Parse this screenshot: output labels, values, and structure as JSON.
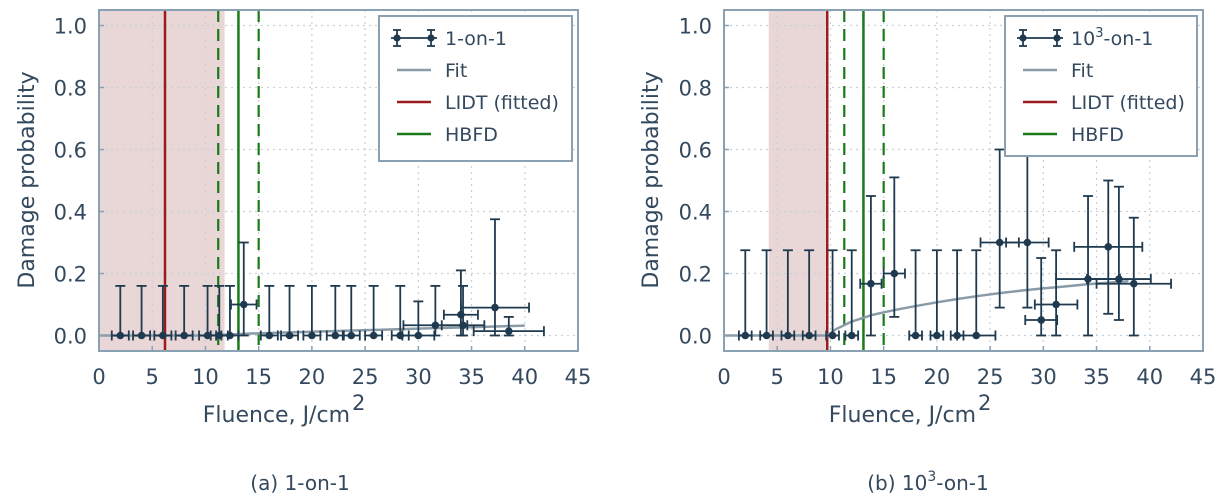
{
  "colors": {
    "axes": "#8aa0b3",
    "grid": "#c8d0d8",
    "data": "#1f3a4f",
    "fit": "#8a9ba8",
    "lidt": "#9b1c1c",
    "hbfd": "#1a7a1a",
    "shade": "#e9d6d6",
    "text": "#34495e"
  },
  "chart_data": [
    {
      "type": "scatter",
      "caption": "(a) 1-on-1",
      "xlabel_main": "Fluence, J/cm",
      "xlabel_sup": "2",
      "ylabel": "Damage probability",
      "xlim": [
        0,
        45
      ],
      "ylim": [
        -0.05,
        1.05
      ],
      "xticks": [
        "0",
        "5",
        "10",
        "15",
        "20",
        "25",
        "30",
        "35",
        "40",
        "45"
      ],
      "yticks": [
        "0.0",
        "0.2",
        "0.4",
        "0.6",
        "0.8",
        "1.0"
      ],
      "grid": true,
      "legend_position": "top-right",
      "legend": {
        "data_label": "1-on-1",
        "data_label_sup": "",
        "data_label_rest": "",
        "fit_label": "Fit",
        "lidt_label": "LIDT (fitted)",
        "hbfd_label": "HBFD"
      },
      "shaded_region": [
        0,
        11.8
      ],
      "lidt": 6.2,
      "hbfd": 13.1,
      "hbfd_band": [
        11.2,
        15.0
      ],
      "fit": {
        "x": [
          0,
          10,
          12,
          14,
          16,
          18,
          20,
          22,
          24,
          26,
          28,
          30,
          32,
          34,
          36,
          38,
          40
        ],
        "y": [
          0,
          0,
          0.003,
          0.006,
          0.008,
          0.01,
          0.012,
          0.014,
          0.016,
          0.018,
          0.02,
          0.022,
          0.024,
          0.026,
          0.028,
          0.03,
          0.032
        ]
      },
      "points": [
        {
          "x": 2.0,
          "y": 0.0,
          "xerr": 0.8,
          "ylo": 0.0,
          "yhi": 0.16
        },
        {
          "x": 4.0,
          "y": 0.0,
          "xerr": 0.8,
          "ylo": 0.0,
          "yhi": 0.16
        },
        {
          "x": 6.0,
          "y": 0.0,
          "xerr": 0.8,
          "ylo": 0.0,
          "yhi": 0.16
        },
        {
          "x": 8.0,
          "y": 0.0,
          "xerr": 0.8,
          "ylo": 0.0,
          "yhi": 0.16
        },
        {
          "x": 10.2,
          "y": 0.0,
          "xerr": 0.8,
          "ylo": 0.0,
          "yhi": 0.16
        },
        {
          "x": 11.3,
          "y": 0.0,
          "xerr": 0.8,
          "ylo": 0.0,
          "yhi": 0.16
        },
        {
          "x": 12.3,
          "y": 0.0,
          "xerr": 0.8,
          "ylo": 0.0,
          "yhi": 0.16
        },
        {
          "x": 13.6,
          "y": 0.1,
          "xerr": 1.2,
          "ylo": 0.0,
          "yhi": 0.3
        },
        {
          "x": 16.0,
          "y": 0.0,
          "xerr": 0.8,
          "ylo": 0.0,
          "yhi": 0.16
        },
        {
          "x": 17.9,
          "y": 0.0,
          "xerr": 0.8,
          "ylo": 0.0,
          "yhi": 0.16
        },
        {
          "x": 20.0,
          "y": 0.0,
          "xerr": 0.8,
          "ylo": 0.0,
          "yhi": 0.16
        },
        {
          "x": 22.2,
          "y": 0.0,
          "xerr": 0.8,
          "ylo": 0.0,
          "yhi": 0.16
        },
        {
          "x": 23.7,
          "y": 0.0,
          "xerr": 0.8,
          "ylo": 0.0,
          "yhi": 0.16
        },
        {
          "x": 25.8,
          "y": 0.0,
          "xerr": 0.8,
          "ylo": 0.0,
          "yhi": 0.16
        },
        {
          "x": 28.3,
          "y": 0.0,
          "xerr": 0.8,
          "ylo": 0.0,
          "yhi": 0.16
        },
        {
          "x": 30.0,
          "y": 0.0,
          "xerr": 1.5,
          "ylo": 0.0,
          "yhi": 0.11
        },
        {
          "x": 31.6,
          "y": 0.033,
          "xerr": 3.0,
          "ylo": 0.0,
          "yhi": 0.16
        },
        {
          "x": 34.0,
          "y": 0.067,
          "xerr": 1.6,
          "ylo": 0.0,
          "yhi": 0.21
        },
        {
          "x": 34.2,
          "y": 0.033,
          "xerr": 2.0,
          "ylo": 0.0,
          "yhi": 0.16
        },
        {
          "x": 37.2,
          "y": 0.09,
          "xerr": 3.2,
          "ylo": 0.0,
          "yhi": 0.375
        },
        {
          "x": 38.5,
          "y": 0.014,
          "xerr": 3.3,
          "ylo": 0.0,
          "yhi": 0.06
        }
      ]
    },
    {
      "type": "scatter",
      "caption": "(b) 10",
      "caption_sup": "3",
      "caption_rest": "-on-1",
      "xlabel_main": "Fluence, J/cm",
      "xlabel_sup": "2",
      "ylabel": "Damage probability",
      "xlim": [
        0,
        45
      ],
      "ylim": [
        -0.05,
        1.05
      ],
      "xticks": [
        "0",
        "5",
        "10",
        "15",
        "20",
        "25",
        "30",
        "35",
        "40",
        "45"
      ],
      "yticks": [
        "0.0",
        "0.2",
        "0.4",
        "0.6",
        "0.8",
        "1.0"
      ],
      "grid": true,
      "legend_position": "top-right",
      "legend": {
        "data_label": "10",
        "data_label_sup": "3",
        "data_label_rest": "-on-1",
        "fit_label": "Fit",
        "lidt_label": "LIDT (fitted)",
        "hbfd_label": "HBFD"
      },
      "shaded_region": [
        4.2,
        9.6
      ],
      "lidt": 9.7,
      "hbfd": 13.1,
      "hbfd_band": [
        11.3,
        15.0
      ],
      "fit": {
        "x": [
          0,
          9.7,
          10.5,
          12,
          14,
          16,
          18,
          20,
          22,
          24,
          26,
          28,
          30,
          32,
          34,
          36,
          38
        ],
        "y": [
          0,
          0,
          0.02,
          0.045,
          0.067,
          0.082,
          0.095,
          0.107,
          0.118,
          0.128,
          0.137,
          0.145,
          0.152,
          0.158,
          0.165,
          0.17,
          0.175
        ]
      },
      "points": [
        {
          "x": 2.0,
          "y": 0.0,
          "xerr": 0.6,
          "ylo": 0.0,
          "yhi": 0.275
        },
        {
          "x": 4.0,
          "y": 0.0,
          "xerr": 0.6,
          "ylo": 0.0,
          "yhi": 0.275
        },
        {
          "x": 6.0,
          "y": 0.0,
          "xerr": 0.6,
          "ylo": 0.0,
          "yhi": 0.275
        },
        {
          "x": 8.0,
          "y": 0.0,
          "xerr": 0.6,
          "ylo": 0.0,
          "yhi": 0.275
        },
        {
          "x": 10.2,
          "y": 0.0,
          "xerr": 0.6,
          "ylo": 0.0,
          "yhi": 0.275
        },
        {
          "x": 12.0,
          "y": 0.0,
          "xerr": 0.6,
          "ylo": 0.0,
          "yhi": 0.275
        },
        {
          "x": 13.8,
          "y": 0.167,
          "xerr": 1.0,
          "ylo": 0.0,
          "yhi": 0.45
        },
        {
          "x": 16.0,
          "y": 0.2,
          "xerr": 1.0,
          "ylo": 0.06,
          "yhi": 0.51
        },
        {
          "x": 18.0,
          "y": 0.0,
          "xerr": 0.6,
          "ylo": 0.0,
          "yhi": 0.275
        },
        {
          "x": 20.0,
          "y": 0.0,
          "xerr": 0.6,
          "ylo": 0.0,
          "yhi": 0.275
        },
        {
          "x": 21.9,
          "y": 0.0,
          "xerr": 0.6,
          "ylo": 0.0,
          "yhi": 0.275
        },
        {
          "x": 23.7,
          "y": 0.0,
          "xerr": 1.8,
          "ylo": 0.0,
          "yhi": 0.275
        },
        {
          "x": 25.9,
          "y": 0.3,
          "xerr": 1.8,
          "ylo": 0.09,
          "yhi": 0.6
        },
        {
          "x": 28.5,
          "y": 0.3,
          "xerr": 2.0,
          "ylo": 0.09,
          "yhi": 0.6
        },
        {
          "x": 29.8,
          "y": 0.05,
          "xerr": 1.5,
          "ylo": 0.0,
          "yhi": 0.25
        },
        {
          "x": 31.2,
          "y": 0.1,
          "xerr": 2.0,
          "ylo": 0.0,
          "yhi": 0.275
        },
        {
          "x": 34.2,
          "y": 0.182,
          "xerr": 3.0,
          "ylo": 0.0,
          "yhi": 0.45
        },
        {
          "x": 36.1,
          "y": 0.286,
          "xerr": 3.2,
          "ylo": 0.07,
          "yhi": 0.5
        },
        {
          "x": 37.1,
          "y": 0.182,
          "xerr": 3.0,
          "ylo": 0.05,
          "yhi": 0.48
        },
        {
          "x": 38.5,
          "y": 0.167,
          "xerr": 3.5,
          "ylo": 0.0,
          "yhi": 0.38
        }
      ]
    }
  ]
}
